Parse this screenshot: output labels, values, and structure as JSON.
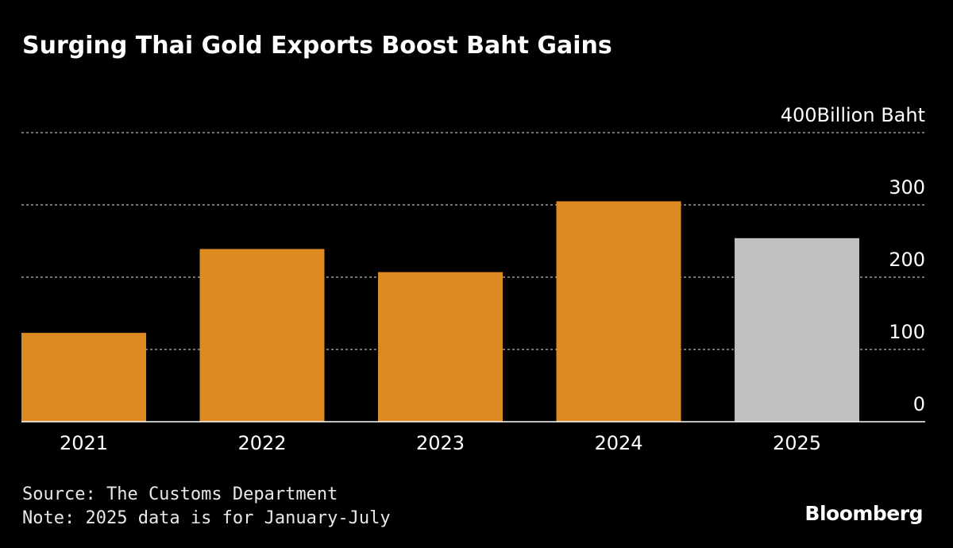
{
  "chart_data": {
    "type": "bar",
    "title": "Surging Thai Gold Exports Boost Baht Gains",
    "ylabel": "Billion Baht",
    "categories": [
      "2021",
      "2022",
      "2023",
      "2024",
      "2025"
    ],
    "values": [
      123,
      239,
      207,
      305,
      254
    ],
    "colors": [
      "#dd8a22",
      "#dd8a22",
      "#dd8a22",
      "#dd8a22",
      "#c0c0c0"
    ],
    "ylim": [
      0,
      400
    ],
    "yticks": [
      0,
      100,
      200,
      300,
      400
    ],
    "grid": true,
    "axis_side": "right"
  },
  "footer": {
    "source": "Source: The Customs Department",
    "note": "Note: 2025 data is for January-July",
    "logo": "Bloomberg"
  }
}
